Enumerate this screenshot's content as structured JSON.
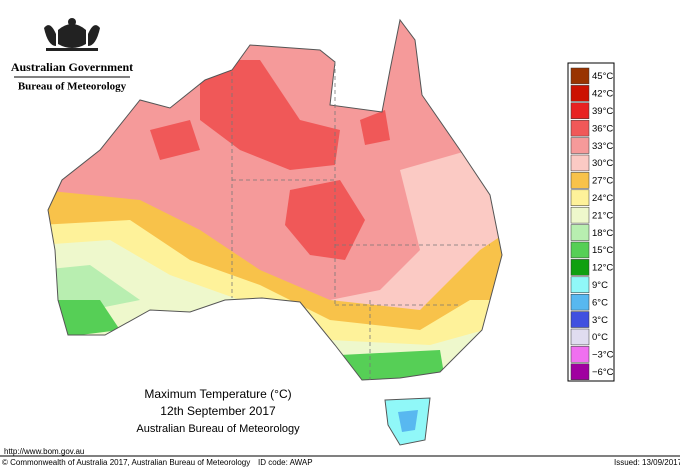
{
  "header": {
    "government": "Australian Government",
    "agency": "Bureau of Meteorology"
  },
  "map": {
    "title": "Maximum Temperature (°C)",
    "date": "12th September 2017",
    "source": "Australian Bureau of Meteorology"
  },
  "legend": {
    "items": [
      {
        "label": "45°C",
        "color": "#993300"
      },
      {
        "label": "42°C",
        "color": "#cc1100"
      },
      {
        "label": "39°C",
        "color": "#e82222"
      },
      {
        "label": "36°C",
        "color": "#f05858"
      },
      {
        "label": "33°C",
        "color": "#f59a9a"
      },
      {
        "label": "30°C",
        "color": "#fbcac4"
      },
      {
        "label": "27°C",
        "color": "#f8c24a"
      },
      {
        "label": "24°C",
        "color": "#fef29a"
      },
      {
        "label": "21°C",
        "color": "#eef8cc"
      },
      {
        "label": "18°C",
        "color": "#b8eeb0"
      },
      {
        "label": "15°C",
        "color": "#56cf56"
      },
      {
        "label": "12°C",
        "color": "#10a010"
      },
      {
        "label": "9°C",
        "color": "#90f8f8"
      },
      {
        "label": "6°C",
        "color": "#58b8f0"
      },
      {
        "label": "3°C",
        "color": "#4050e0"
      },
      {
        "label": "0°C",
        "color": "#e0dcf0"
      },
      {
        "label": "−3°C",
        "color": "#f070f0"
      },
      {
        "label": "−6°C",
        "color": "#a000a0"
      }
    ]
  },
  "footer": {
    "url": "http://www.bom.gov.au",
    "copyright": "© Commonwealth of Australia 2017, Australian Bureau of Meteorology",
    "id_code": "ID code: AWAP",
    "issued": "Issued: 13/09/2017"
  }
}
